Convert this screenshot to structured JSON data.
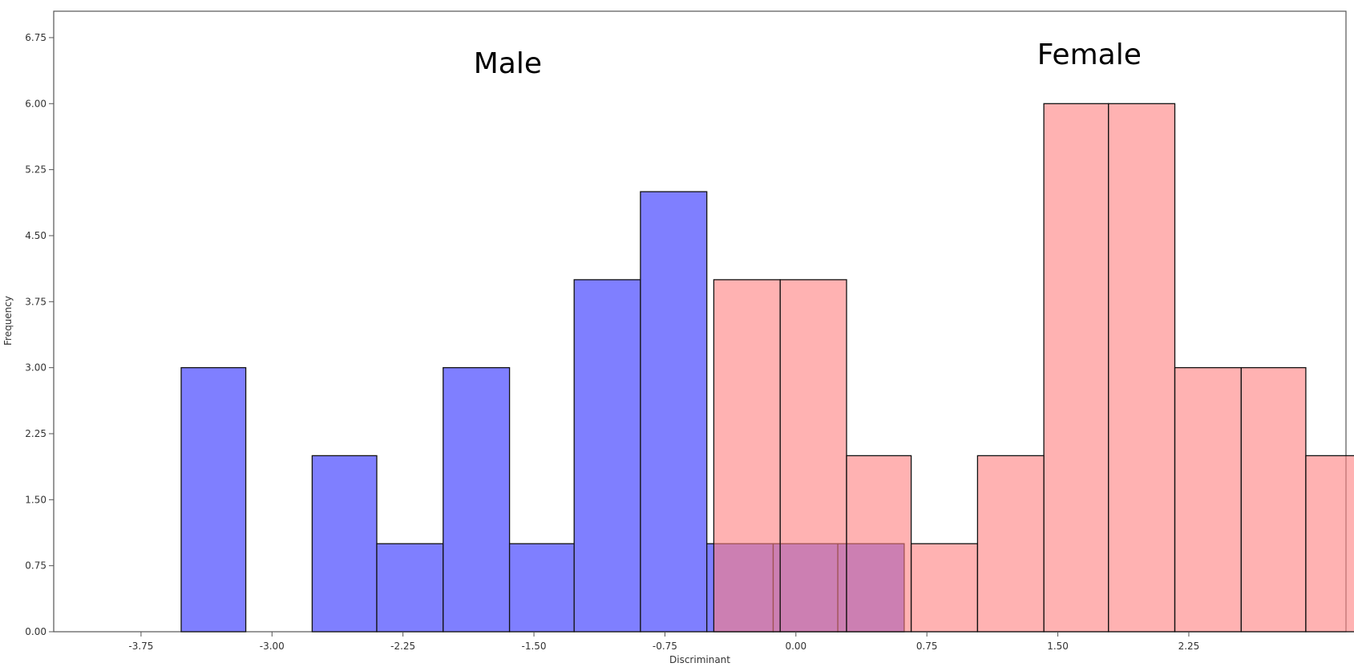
{
  "chart_data": {
    "type": "bar",
    "title": "",
    "xlabel": "Discriminant",
    "ylabel": "Frequency",
    "xlim": [
      -4.25,
      3.15
    ],
    "ylim": [
      0,
      7.05
    ],
    "grid": false,
    "x_ticks": [
      -3.75,
      -3.0,
      -2.25,
      -1.5,
      -0.75,
      0.0,
      0.75,
      1.5,
      2.25
    ],
    "x_tick_labels": [
      "-3.75",
      "-3.00",
      "-2.25",
      "-1.50",
      "-0.75",
      "0.00",
      "0.75",
      "1.50",
      "2.25"
    ],
    "y_ticks": [
      0,
      0.75,
      1.5,
      2.25,
      3.0,
      3.75,
      4.5,
      5.25,
      6.0,
      6.75
    ],
    "y_tick_labels": [
      "0.00",
      "0.75",
      "1.50",
      "2.25",
      "3.00",
      "3.75",
      "4.50",
      "5.25",
      "6.00",
      "6.75"
    ],
    "series": [
      {
        "name": "Male",
        "color": "#7f7fff",
        "bars": [
          {
            "x0": -3.52,
            "x1": -3.15,
            "value": 3
          },
          {
            "x0": -2.77,
            "x1": -2.4,
            "value": 2
          },
          {
            "x0": -2.4,
            "x1": -2.02,
            "value": 1
          },
          {
            "x0": -2.02,
            "x1": -1.64,
            "value": 3
          },
          {
            "x0": -1.64,
            "x1": -1.27,
            "value": 1
          },
          {
            "x0": -1.27,
            "x1": -0.89,
            "value": 4
          },
          {
            "x0": -0.89,
            "x1": -0.51,
            "value": 5
          },
          {
            "x0": -0.51,
            "x1": -0.13,
            "value": 1
          },
          {
            "x0": -0.13,
            "x1": 0.24,
            "value": 1
          },
          {
            "x0": 0.24,
            "x1": 0.62,
            "value": 1
          }
        ]
      },
      {
        "name": "Female",
        "color": "#ff7f7f",
        "bars": [
          {
            "x0": -0.47,
            "x1": -0.09,
            "value": 4
          },
          {
            "x0": -0.09,
            "x1": 0.29,
            "value": 4
          },
          {
            "x0": 0.29,
            "x1": 0.66,
            "value": 2
          },
          {
            "x0": 0.66,
            "x1": 1.04,
            "value": 1
          },
          {
            "x0": 1.04,
            "x1": 1.42,
            "value": 2
          },
          {
            "x0": 1.42,
            "x1": 1.79,
            "value": 6
          },
          {
            "x0": 1.79,
            "x1": 2.17,
            "value": 6
          },
          {
            "x0": 2.17,
            "x1": 2.55,
            "value": 3
          },
          {
            "x0": 2.55,
            "x1": 2.92,
            "value": 3
          },
          {
            "x0": 2.92,
            "x1": 3.3,
            "value": 2
          }
        ]
      }
    ],
    "annotations": [
      {
        "text": "Male",
        "x": -1.65,
        "y": 6.35
      },
      {
        "text": "Female",
        "x": 1.68,
        "y": 6.45
      }
    ]
  }
}
